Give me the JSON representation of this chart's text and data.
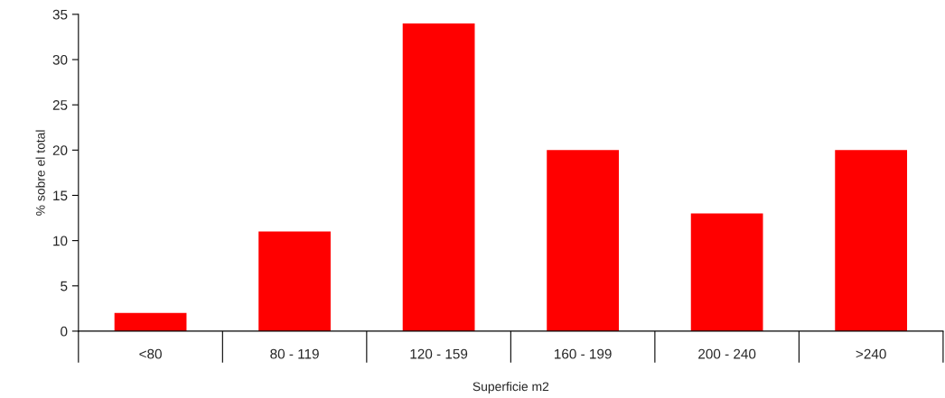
{
  "chart_data": {
    "type": "bar",
    "xlabel": "Superficie m2",
    "ylabel": "% sobre el total",
    "categories": [
      "<80",
      "80 - 119",
      "120 - 159",
      "160 - 199",
      "200 - 240",
      ">240"
    ],
    "values": [
      2,
      11,
      34,
      20,
      13,
      20
    ],
    "color": "#ff0000",
    "ylim": [
      0,
      35
    ],
    "yticks": [
      0,
      5,
      10,
      15,
      20,
      25,
      30,
      35
    ],
    "grid": false,
    "legend": false
  }
}
